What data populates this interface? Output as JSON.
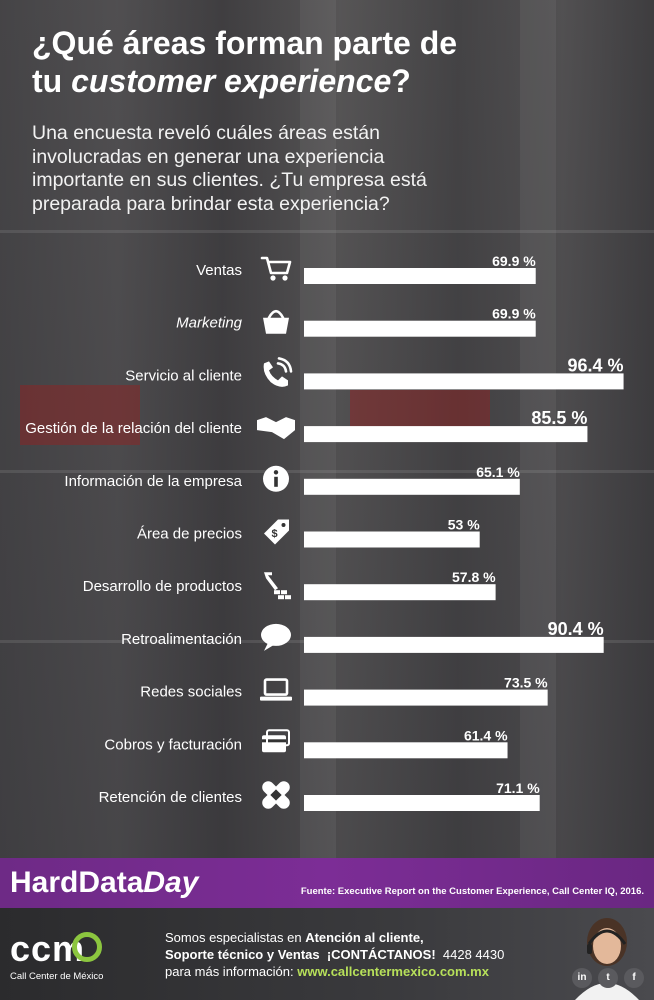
{
  "header": {
    "title_part1": "¿Qué áreas forman parte de",
    "title_part2": "tu ",
    "title_italic": "customer experience",
    "title_part3": "?",
    "subtitle_line1": "Una encuesta reveló cuáles áreas están",
    "subtitle_line2": "involucradas en generar una experiencia",
    "subtitle_line3": "importante en sus clientes. ¿Tu empresa está",
    "subtitle_line4": "preparada para brindar esta experiencia?"
  },
  "chart_data": {
    "type": "bar",
    "orientation": "horizontal",
    "title": "¿Qué áreas forman parte de tu customer experience?",
    "xlabel": "",
    "ylabel": "",
    "xlim": [
      0,
      100
    ],
    "unit": "%",
    "grid": false,
    "categories": [
      "Ventas",
      "Marketing",
      "Servicio al cliente",
      "Gestión de la relación del cliente",
      "Información de la empresa",
      "Área de precios",
      "Desarrollo de productos",
      "Retroalimentación",
      "Redes sociales",
      "Cobros y facturación",
      "Retención de clientes"
    ],
    "values": [
      69.9,
      69.9,
      96.4,
      85.5,
      65.1,
      53,
      57.8,
      90.4,
      73.5,
      61.4,
      71.1
    ],
    "value_labels": [
      "69.9 %",
      "69.9 %",
      "96.4 %",
      "85.5 %",
      "65.1 %",
      "53 %",
      "57.8 %",
      "90.4 %",
      "73.5 %",
      "61.4 %",
      "71.1 %"
    ],
    "icons": [
      "cart-icon",
      "shopping-bag-icon",
      "phone-icon",
      "handshake-icon",
      "info-icon",
      "price-tag-icon",
      "build-tools-icon",
      "speech-bubble-icon",
      "laptop-icon",
      "credit-card-icon",
      "bandage-icon"
    ],
    "italic_categories": [
      "Marketing"
    ]
  },
  "banner": {
    "brand_part1": "HardData",
    "brand_part2": "Day",
    "source": "Fuente: Executive Report on the Customer Experience, Call Center IQ, 2016."
  },
  "footer": {
    "logo": "ccm",
    "logo_sub": "Call Center de México",
    "line1_pre": "Somos especialistas en ",
    "line1_bold": "Atención al cliente,",
    "line2_bold": "Soporte técnico y Ventas",
    "line2_cta": "¡CONTÁCTANOS!",
    "line2_phone": "4428 4430",
    "line3_pre": "para más información: ",
    "line3_url": "www.callcentermexico.com.mx",
    "social": [
      "in",
      "t",
      "f"
    ]
  },
  "colors": {
    "banner": "#7c2d96",
    "accent_green": "#b7e05a",
    "bar": "#ffffff"
  }
}
